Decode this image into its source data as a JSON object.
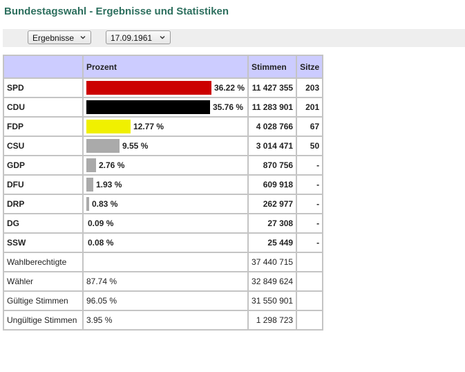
{
  "title": "Bundestagswahl - Ergebnisse und Statistiken",
  "toolbar": {
    "view_select": "Ergebnisse",
    "date_select": "17.09.1961"
  },
  "table": {
    "headers": {
      "party": "",
      "percent": "Prozent",
      "votes": "Stimmen",
      "seats": "Sitze"
    },
    "parties": [
      {
        "name": "SPD",
        "percent": "36.22 %",
        "percent_value": 36.22,
        "votes": "11 427 355",
        "seats": "203",
        "color": "#cc0000"
      },
      {
        "name": "CDU",
        "percent": "35.76 %",
        "percent_value": 35.76,
        "votes": "11 283 901",
        "seats": "201",
        "color": "#000000"
      },
      {
        "name": "FDP",
        "percent": "12.77 %",
        "percent_value": 12.77,
        "votes": "4 028 766",
        "seats": "67",
        "color": "#f0f000"
      },
      {
        "name": "CSU",
        "percent": "9.55 %",
        "percent_value": 9.55,
        "votes": "3 014 471",
        "seats": "50",
        "color": "#aaaaaa"
      },
      {
        "name": "GDP",
        "percent": "2.76 %",
        "percent_value": 2.76,
        "votes": "870 756",
        "seats": "-",
        "color": "#aaaaaa"
      },
      {
        "name": "DFU",
        "percent": "1.93 %",
        "percent_value": 1.93,
        "votes": "609 918",
        "seats": "-",
        "color": "#aaaaaa"
      },
      {
        "name": "DRP",
        "percent": "0.83 %",
        "percent_value": 0.83,
        "votes": "262 977",
        "seats": "-",
        "color": "#aaaaaa"
      },
      {
        "name": "DG",
        "percent": "0.09 %",
        "percent_value": 0.09,
        "votes": "27 308",
        "seats": "-",
        "color": "#aaaaaa"
      },
      {
        "name": "SSW",
        "percent": "0.08 %",
        "percent_value": 0.08,
        "votes": "25 449",
        "seats": "-",
        "color": "#aaaaaa"
      }
    ],
    "stats": [
      {
        "label": "Wahlberechtigte",
        "percent": "",
        "votes": "37 440 715"
      },
      {
        "label": "Wähler",
        "percent": "87.74 %",
        "votes": "32 849 624"
      },
      {
        "label": "Gültige Stimmen",
        "percent": "96.05 %",
        "votes": "31 550 901"
      },
      {
        "label": "Ungültige Stimmen",
        "percent": "3.95 %",
        "votes": "1 298 723"
      }
    ]
  },
  "icons": {
    "select_arrow": "chevron-down-icon"
  }
}
